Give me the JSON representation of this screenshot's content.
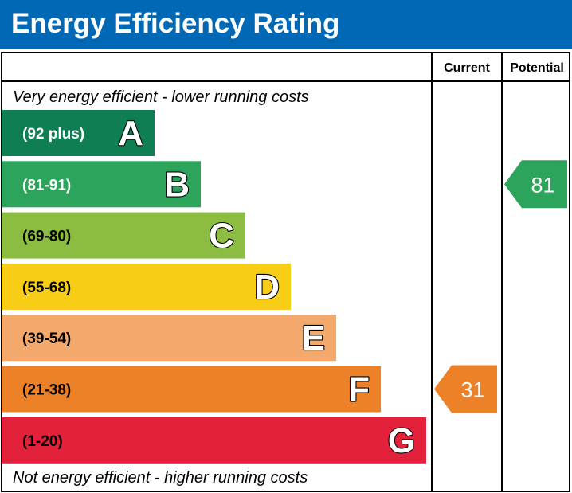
{
  "header": {
    "title": "Energy Efficiency Rating"
  },
  "columns": {
    "current": "Current",
    "potential": "Potential"
  },
  "notes": {
    "top": "Very energy efficient - lower running costs",
    "bottom": "Not energy efficient - higher running costs"
  },
  "colors": {
    "header": "#0068b4",
    "A": "#0f7e53",
    "B": "#2ca45b",
    "C": "#8dbc43",
    "D": "#f7cd16",
    "E": "#f2a96b",
    "F": "#ed8128",
    "G": "#e4213b"
  },
  "chart_data": {
    "type": "bar",
    "title": "Energy Efficiency Rating",
    "bands": [
      {
        "letter": "A",
        "range": "(92 plus)",
        "min": 92,
        "max": 100,
        "color": "#0f7e53"
      },
      {
        "letter": "B",
        "range": "(81-91)",
        "min": 81,
        "max": 91,
        "color": "#2ca45b"
      },
      {
        "letter": "C",
        "range": "(69-80)",
        "min": 69,
        "max": 80,
        "color": "#8dbc43"
      },
      {
        "letter": "D",
        "range": "(55-68)",
        "min": 55,
        "max": 68,
        "color": "#f7cd16"
      },
      {
        "letter": "E",
        "range": "(39-54)",
        "min": 39,
        "max": 54,
        "color": "#f2a96b"
      },
      {
        "letter": "F",
        "range": "(21-38)",
        "min": 21,
        "max": 38,
        "color": "#ed8128"
      },
      {
        "letter": "G",
        "range": "(1-20)",
        "min": 1,
        "max": 20,
        "color": "#e4213b"
      }
    ],
    "current": {
      "value": 31,
      "band": "F",
      "color": "#ed8128"
    },
    "potential": {
      "value": 81,
      "band": "B",
      "color": "#2ca45b"
    }
  }
}
